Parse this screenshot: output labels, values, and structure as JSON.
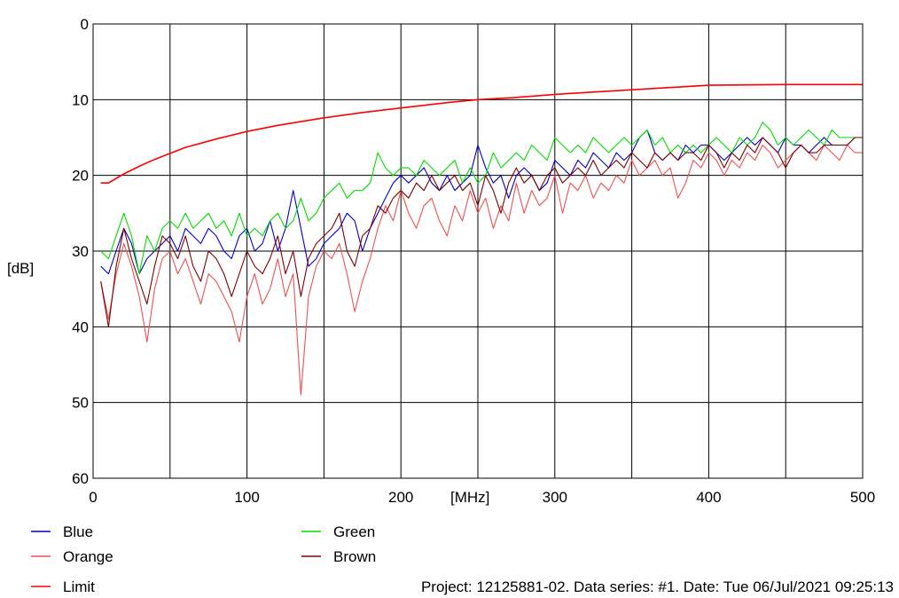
{
  "chart_data": {
    "type": "line",
    "title": "",
    "xlabel": "[MHz]",
    "ylabel": "[dB]",
    "xlim": [
      0,
      500
    ],
    "ylim": [
      0,
      60
    ],
    "y_inverted": true,
    "grid": true,
    "xticks": [
      0,
      100,
      200,
      300,
      400,
      500
    ],
    "yticks": [
      0,
      10,
      20,
      30,
      40,
      50,
      60
    ],
    "legend_position": "bottom",
    "series": [
      {
        "name": "Blue",
        "color": "#0000cc",
        "x": [
          5,
          10,
          15,
          20,
          25,
          30,
          35,
          40,
          45,
          50,
          55,
          60,
          65,
          70,
          75,
          80,
          85,
          90,
          95,
          100,
          105,
          110,
          115,
          120,
          125,
          130,
          135,
          140,
          145,
          150,
          155,
          160,
          165,
          170,
          175,
          180,
          185,
          190,
          195,
          200,
          205,
          210,
          215,
          220,
          225,
          230,
          235,
          240,
          245,
          250,
          255,
          260,
          265,
          270,
          275,
          280,
          285,
          290,
          295,
          300,
          305,
          310,
          315,
          320,
          325,
          330,
          335,
          340,
          345,
          350,
          355,
          360,
          365,
          370,
          375,
          380,
          385,
          390,
          395,
          400,
          405,
          410,
          415,
          420,
          425,
          430,
          435,
          440,
          445,
          450,
          455,
          460,
          465,
          470,
          475,
          480,
          485,
          490,
          495,
          500
        ],
        "values": [
          32,
          33,
          30,
          27,
          29,
          33,
          31,
          30,
          29,
          28,
          30,
          27,
          28,
          29,
          27,
          28,
          30,
          31,
          28,
          27,
          30,
          29,
          26,
          30,
          27,
          22,
          27,
          32,
          31,
          29,
          28,
          27,
          25,
          26,
          30,
          27,
          25,
          23,
          21,
          20,
          21,
          20,
          19,
          21,
          22,
          20,
          22,
          21,
          20,
          16,
          19,
          21,
          20,
          23,
          20,
          19,
          20,
          22,
          21,
          18,
          19,
          20,
          18,
          19,
          17,
          18,
          19,
          17,
          18,
          17,
          15,
          14,
          17,
          18,
          17,
          18,
          16,
          17,
          16,
          16,
          17,
          18,
          17,
          16,
          15,
          16,
          15,
          16,
          17,
          15,
          16,
          16,
          17,
          16,
          15,
          16,
          16,
          16,
          15,
          15
        ]
      },
      {
        "name": "Orange",
        "color": "#f05050",
        "x": [
          5,
          10,
          15,
          20,
          25,
          30,
          35,
          40,
          45,
          50,
          55,
          60,
          65,
          70,
          75,
          80,
          85,
          90,
          95,
          100,
          105,
          110,
          115,
          120,
          125,
          130,
          135,
          140,
          145,
          150,
          155,
          160,
          165,
          170,
          175,
          180,
          185,
          190,
          195,
          200,
          205,
          210,
          215,
          220,
          225,
          230,
          235,
          240,
          245,
          250,
          255,
          260,
          265,
          270,
          275,
          280,
          285,
          290,
          295,
          300,
          305,
          310,
          315,
          320,
          325,
          330,
          335,
          340,
          345,
          350,
          355,
          360,
          365,
          370,
          375,
          380,
          385,
          390,
          395,
          400,
          405,
          410,
          415,
          420,
          425,
          430,
          435,
          440,
          445,
          450,
          455,
          460,
          465,
          470,
          475,
          480,
          485,
          490,
          495,
          500
        ],
        "values": [
          34,
          39,
          33,
          29,
          32,
          36,
          42,
          35,
          31,
          30,
          33,
          31,
          34,
          37,
          33,
          34,
          36,
          38,
          42,
          36,
          33,
          37,
          35,
          31,
          36,
          33,
          49,
          36,
          32,
          30,
          31,
          29,
          33,
          38,
          34,
          31,
          27,
          24,
          26,
          22,
          25,
          27,
          24,
          23,
          26,
          28,
          24,
          26,
          22,
          25,
          23,
          27,
          24,
          26,
          21,
          25,
          22,
          24,
          23,
          20,
          25,
          21,
          22,
          20,
          23,
          21,
          22,
          20,
          21,
          18,
          20,
          19,
          18,
          20,
          19,
          23,
          21,
          18,
          19,
          17,
          18,
          20,
          18,
          19,
          17,
          18,
          16,
          17,
          19,
          18,
          17,
          16,
          17,
          18,
          16,
          17,
          18,
          16,
          17,
          17
        ]
      },
      {
        "name": "Green",
        "color": "#00dd00",
        "x": [
          5,
          10,
          15,
          20,
          25,
          30,
          35,
          40,
          45,
          50,
          55,
          60,
          65,
          70,
          75,
          80,
          85,
          90,
          95,
          100,
          105,
          110,
          115,
          120,
          125,
          130,
          135,
          140,
          145,
          150,
          155,
          160,
          165,
          170,
          175,
          180,
          185,
          190,
          195,
          200,
          205,
          210,
          215,
          220,
          225,
          230,
          235,
          240,
          245,
          250,
          255,
          260,
          265,
          270,
          275,
          280,
          285,
          290,
          295,
          300,
          305,
          310,
          315,
          320,
          325,
          330,
          335,
          340,
          345,
          350,
          355,
          360,
          365,
          370,
          375,
          380,
          385,
          390,
          395,
          400,
          405,
          410,
          415,
          420,
          425,
          430,
          435,
          440,
          445,
          450,
          455,
          460,
          465,
          470,
          475,
          480,
          485,
          490,
          495,
          500
        ],
        "values": [
          30,
          31,
          28,
          25,
          28,
          33,
          28,
          30,
          27,
          26,
          27,
          25,
          27,
          26,
          25,
          27,
          26,
          28,
          25,
          28,
          27,
          28,
          26,
          25,
          27,
          26,
          23,
          26,
          25,
          23,
          22,
          21,
          23,
          22,
          22,
          21,
          17,
          19,
          20,
          19,
          19,
          20,
          18,
          19,
          20,
          19,
          18,
          21,
          19,
          21,
          20,
          17,
          19,
          18,
          17,
          18,
          16,
          17,
          18,
          15,
          16,
          17,
          16,
          17,
          15,
          16,
          17,
          16,
          15,
          16,
          15,
          14,
          16,
          15,
          17,
          16,
          17,
          16,
          17,
          16,
          15,
          16,
          17,
          15,
          16,
          15,
          13,
          14,
          16,
          15,
          16,
          15,
          14,
          15,
          16,
          14,
          15,
          15,
          15,
          15
        ]
      },
      {
        "name": "Brown",
        "color": "#800000",
        "x": [
          5,
          10,
          15,
          20,
          25,
          30,
          35,
          40,
          45,
          50,
          55,
          60,
          65,
          70,
          75,
          80,
          85,
          90,
          95,
          100,
          105,
          110,
          115,
          120,
          125,
          130,
          135,
          140,
          145,
          150,
          155,
          160,
          165,
          170,
          175,
          180,
          185,
          190,
          195,
          200,
          205,
          210,
          215,
          220,
          225,
          230,
          235,
          240,
          245,
          250,
          255,
          260,
          265,
          270,
          275,
          280,
          285,
          290,
          295,
          300,
          305,
          310,
          315,
          320,
          325,
          330,
          335,
          340,
          345,
          350,
          355,
          360,
          365,
          370,
          375,
          380,
          385,
          390,
          395,
          400,
          405,
          410,
          415,
          420,
          425,
          430,
          435,
          440,
          445,
          450,
          455,
          460,
          465,
          470,
          475,
          480,
          485,
          490,
          495,
          500
        ],
        "values": [
          34,
          40,
          32,
          27,
          31,
          34,
          37,
          32,
          28,
          29,
          31,
          28,
          32,
          34,
          30,
          31,
          33,
          36,
          33,
          30,
          32,
          33,
          31,
          28,
          33,
          30,
          36,
          31,
          29,
          28,
          27,
          25,
          30,
          32,
          28,
          27,
          24,
          25,
          23,
          22,
          23,
          21,
          22,
          20,
          22,
          21,
          20,
          22,
          21,
          24,
          20,
          22,
          25,
          21,
          19,
          21,
          20,
          22,
          20,
          19,
          21,
          20,
          19,
          20,
          18,
          20,
          19,
          18,
          19,
          17,
          18,
          19,
          17,
          18,
          17,
          18,
          17,
          17,
          18,
          16,
          17,
          19,
          17,
          18,
          16,
          17,
          15,
          16,
          17,
          19,
          17,
          16,
          17,
          17,
          16,
          16,
          16,
          16,
          15,
          15
        ]
      },
      {
        "name": "Limit",
        "color": "#ff0000",
        "x": [
          5,
          10,
          20,
          30,
          40,
          50,
          60,
          80,
          100,
          120,
          150,
          175,
          200,
          230,
          250,
          275,
          300,
          350,
          400,
          450,
          500
        ],
        "values": [
          21,
          21,
          19.8,
          18.8,
          17.9,
          17.1,
          16.3,
          15.2,
          14.2,
          13.4,
          12.4,
          11.7,
          11.1,
          10.4,
          10.0,
          9.7,
          9.3,
          8.7,
          8.1,
          8.0,
          8.0
        ]
      }
    ]
  },
  "footer": {
    "info": "Project: 12125881-02. Data series: #1. Date: Tue 06/Jul/2021 09:25:13"
  }
}
